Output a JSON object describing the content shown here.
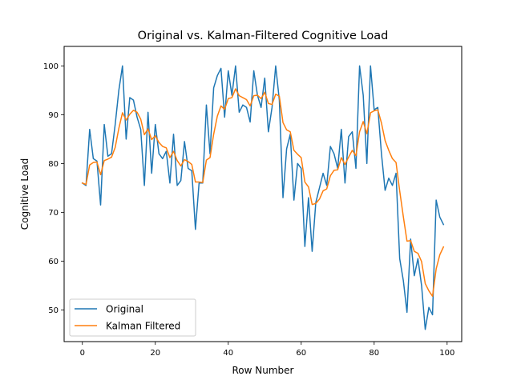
{
  "chart_data": {
    "type": "line",
    "title": "Original vs. Kalman-Filtered Cognitive Load",
    "xlabel": "Row Number",
    "ylabel": "Cognitive Load",
    "xlim": [
      -5,
      104
    ],
    "ylim": [
      43.5,
      104
    ],
    "xticks": [
      0,
      20,
      40,
      60,
      80,
      100
    ],
    "yticks": [
      50,
      60,
      70,
      80,
      90,
      100
    ],
    "grid": false,
    "legend_position": "lower-left",
    "x": [
      0,
      1,
      2,
      3,
      4,
      5,
      6,
      7,
      8,
      9,
      10,
      11,
      12,
      13,
      14,
      15,
      16,
      17,
      18,
      19,
      20,
      21,
      22,
      23,
      24,
      25,
      26,
      27,
      28,
      29,
      30,
      31,
      32,
      33,
      34,
      35,
      36,
      37,
      38,
      39,
      40,
      41,
      42,
      43,
      44,
      45,
      46,
      47,
      48,
      49,
      50,
      51,
      52,
      53,
      54,
      55,
      56,
      57,
      58,
      59,
      60,
      61,
      62,
      63,
      64,
      65,
      66,
      67,
      68,
      69,
      70,
      71,
      72,
      73,
      74,
      75,
      76,
      77,
      78,
      79,
      80,
      81,
      82,
      83,
      84,
      85,
      86,
      87,
      88,
      89,
      90,
      91,
      92,
      93,
      94,
      95,
      96,
      97,
      98,
      99
    ],
    "series": [
      {
        "name": "Original",
        "color": "#1f77b4",
        "values": [
          76,
          75.5,
          87,
          81,
          80.5,
          71.5,
          88,
          81.5,
          82,
          88,
          95,
          100,
          85,
          93.5,
          93,
          89.5,
          87,
          75.5,
          90.5,
          78,
          88,
          82,
          81,
          82.5,
          76,
          86,
          75.5,
          76.5,
          84.5,
          79,
          78.5,
          66.5,
          76,
          76,
          92,
          82,
          95.5,
          98,
          99.5,
          89.5,
          99,
          94,
          100,
          90.5,
          92,
          91.5,
          88.5,
          99,
          94,
          91.5,
          97.5,
          86.5,
          91.5,
          100,
          93,
          73,
          83,
          86,
          72.5,
          80,
          79,
          63,
          73,
          62,
          72,
          75,
          78,
          75.5,
          83.5,
          82,
          79,
          87,
          76,
          85.5,
          86.5,
          79,
          100,
          94,
          80,
          100,
          91,
          91.5,
          82,
          74.5,
          77,
          75.5,
          78,
          60.5,
          56,
          49.5,
          64.5,
          57,
          60.5,
          55,
          46,
          50.5,
          49,
          72.5,
          69,
          67.5
        ]
      },
      {
        "name": "Kalman Filtered",
        "color": "#ff7f0e",
        "values": [
          76,
          75.7,
          79.7,
          80.2,
          80.3,
          77.7,
          80.6,
          80.9,
          81.3,
          83.3,
          87.2,
          90.4,
          88.9,
          90.1,
          90.9,
          90.5,
          89.1,
          85.9,
          87.1,
          84.9,
          85.7,
          84.3,
          83.5,
          83.2,
          81.2,
          82.5,
          80.6,
          79.5,
          80.8,
          80.4,
          79.8,
          76.2,
          76.2,
          76.1,
          80.7,
          81.2,
          86,
          89.7,
          91.8,
          91.1,
          93.3,
          93.5,
          95.3,
          93.9,
          93.5,
          93.1,
          91.8,
          93.9,
          94,
          93.3,
          94.6,
          92.3,
          92.1,
          94.2,
          93.8,
          88.4,
          86.9,
          86.5,
          82.7,
          81.9,
          81.2,
          76.2,
          75.2,
          71.6,
          71.8,
          72.7,
          74.4,
          74.8,
          77.5,
          78.6,
          78.7,
          81.2,
          79.8,
          81.3,
          82.7,
          81.6,
          86.5,
          88.6,
          86.1,
          90.4,
          90.8,
          91,
          88.3,
          84.7,
          82.7,
          81,
          80.2,
          74.4,
          69.1,
          64.1,
          64.2,
          62,
          61.6,
          59.9,
          55.4,
          53.9,
          52.8,
          58.4,
          61.3,
          62.9
        ]
      }
    ]
  }
}
